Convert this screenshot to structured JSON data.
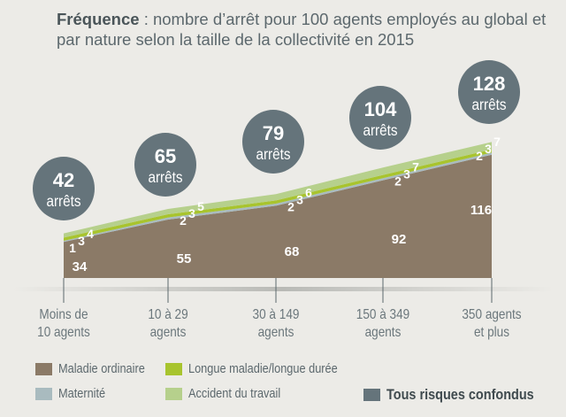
{
  "title": {
    "bold": "Fréquence",
    "rest": " : nombre d’arrêt pour 100 agents employés au global et par nature selon la taille de la collectivité en 2015"
  },
  "chart_data": {
    "type": "area",
    "stacked": true,
    "categories": [
      [
        "Moins de",
        "10 agents"
      ],
      [
        "10 à 29",
        "agents"
      ],
      [
        "30 à 149",
        "agents"
      ],
      [
        "150 à 349",
        "agents"
      ],
      [
        "350 agents",
        "et plus"
      ]
    ],
    "series": [
      {
        "name": "Maladie ordinaire",
        "color": "#8b7a67",
        "values": [
          34,
          55,
          68,
          92,
          116
        ]
      },
      {
        "name": "Maternité",
        "color": "#a9bbbf",
        "values": [
          1,
          2,
          2,
          2,
          2
        ]
      },
      {
        "name": "Longue maladie/longue durée",
        "color": "#a8c42e",
        "values": [
          3,
          3,
          3,
          3,
          3
        ]
      },
      {
        "name": "Accident du travail",
        "color": "#b6d08c",
        "values": [
          4,
          5,
          6,
          7,
          7
        ]
      }
    ],
    "totals": {
      "name": "Tous risques confondus",
      "color": "#65747b",
      "values": [
        42,
        65,
        79,
        104,
        128
      ],
      "unit": "arrêts"
    },
    "grid": false,
    "legend": "bottom"
  }
}
